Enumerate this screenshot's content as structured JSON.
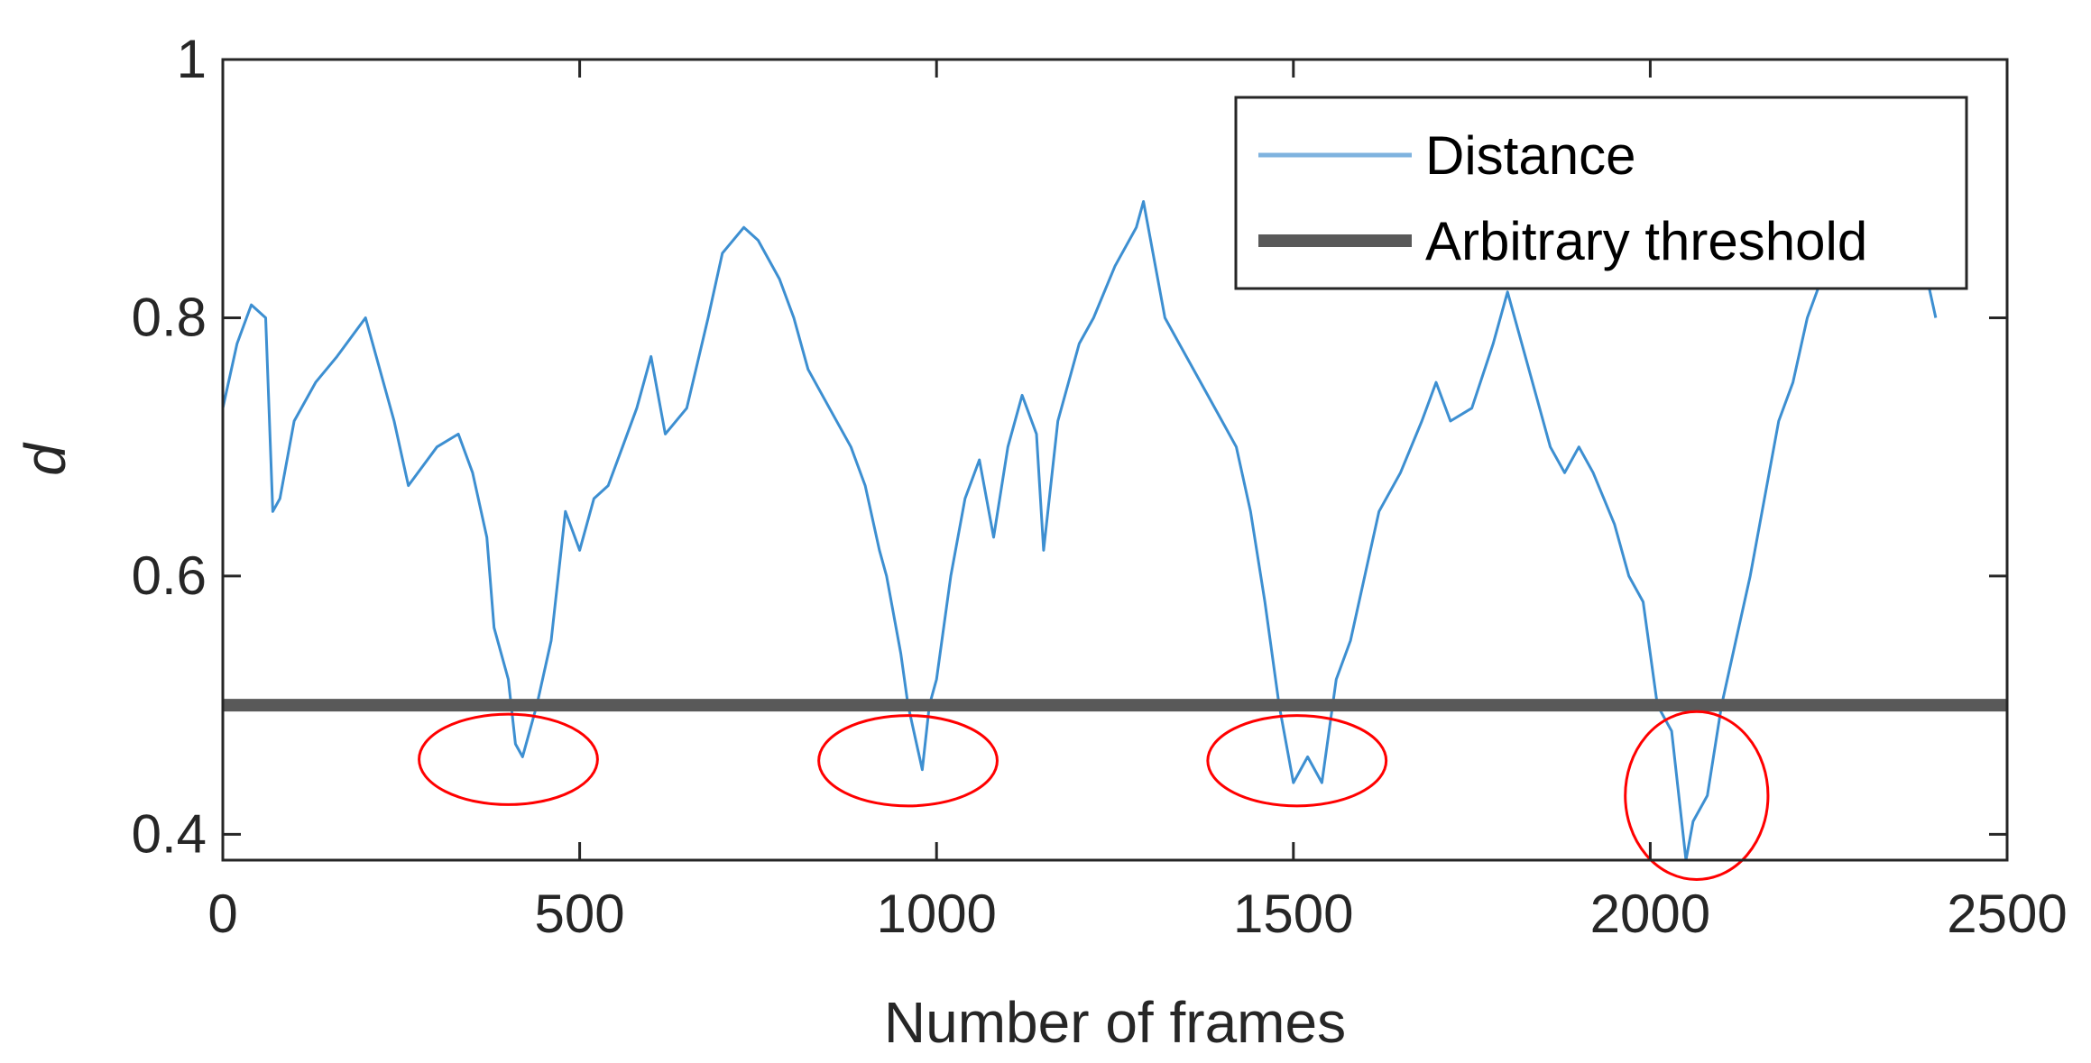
{
  "chart_data": {
    "type": "line",
    "xlabel": "Number of frames",
    "ylabel": "d",
    "xlim": [
      0,
      2500
    ],
    "ylim": [
      0.38,
      1.0
    ],
    "xticks": [
      0,
      500,
      1000,
      1500,
      2000,
      2500
    ],
    "xtick_labels": [
      "0",
      "500",
      "1000",
      "1500",
      "2000",
      "2500"
    ],
    "yticks": [
      0.4,
      0.6,
      0.8,
      1.0
    ],
    "ytick_labels": [
      "0.4",
      "0.6",
      "0.8",
      "1"
    ],
    "grid": false,
    "legend_position": "top-right",
    "series": [
      {
        "name": "Distance",
        "color": "#0072BD",
        "x": [
          0,
          20,
          40,
          60,
          70,
          80,
          100,
          130,
          160,
          200,
          240,
          260,
          300,
          330,
          350,
          370,
          380,
          400,
          410,
          420,
          440,
          460,
          480,
          500,
          520,
          540,
          560,
          580,
          600,
          620,
          650,
          680,
          700,
          730,
          750,
          780,
          800,
          820,
          850,
          880,
          900,
          920,
          930,
          950,
          960,
          980,
          990,
          1000,
          1020,
          1040,
          1060,
          1080,
          1100,
          1120,
          1140,
          1150,
          1170,
          1200,
          1220,
          1250,
          1280,
          1290,
          1320,
          1350,
          1380,
          1400,
          1420,
          1440,
          1460,
          1480,
          1500,
          1520,
          1540,
          1560,
          1580,
          1600,
          1620,
          1650,
          1680,
          1700,
          1720,
          1750,
          1780,
          1800,
          1820,
          1840,
          1860,
          1880,
          1900,
          1920,
          1950,
          1970,
          1990,
          2010,
          2030,
          2050,
          2060,
          2080,
          2100,
          2120,
          2140,
          2160,
          2180,
          2200,
          2220,
          2240,
          2260,
          2280,
          2300,
          2320,
          2350,
          2380,
          2400
        ],
        "y": [
          0.73,
          0.78,
          0.81,
          0.8,
          0.65,
          0.66,
          0.72,
          0.75,
          0.77,
          0.8,
          0.72,
          0.67,
          0.7,
          0.71,
          0.68,
          0.63,
          0.56,
          0.52,
          0.47,
          0.46,
          0.5,
          0.55,
          0.65,
          0.62,
          0.66,
          0.67,
          0.7,
          0.73,
          0.77,
          0.71,
          0.73,
          0.8,
          0.85,
          0.87,
          0.86,
          0.83,
          0.8,
          0.76,
          0.73,
          0.7,
          0.67,
          0.62,
          0.6,
          0.54,
          0.5,
          0.45,
          0.5,
          0.52,
          0.6,
          0.66,
          0.69,
          0.63,
          0.7,
          0.74,
          0.71,
          0.62,
          0.72,
          0.78,
          0.8,
          0.84,
          0.87,
          0.89,
          0.8,
          0.77,
          0.74,
          0.72,
          0.7,
          0.65,
          0.58,
          0.5,
          0.44,
          0.46,
          0.44,
          0.52,
          0.55,
          0.6,
          0.65,
          0.68,
          0.72,
          0.75,
          0.72,
          0.73,
          0.78,
          0.82,
          0.78,
          0.74,
          0.7,
          0.68,
          0.7,
          0.68,
          0.64,
          0.6,
          0.58,
          0.5,
          0.48,
          0.38,
          0.41,
          0.43,
          0.5,
          0.55,
          0.6,
          0.66,
          0.72,
          0.75,
          0.8,
          0.83,
          0.84,
          0.86,
          0.85,
          0.87,
          0.86,
          0.85,
          0.8
        ]
      },
      {
        "name": "Arbitrary threshold",
        "color": "#595959",
        "x": [
          0,
          2500
        ],
        "y": [
          0.5,
          0.5
        ]
      }
    ],
    "annotations": [
      {
        "shape": "ellipse",
        "color": "#FF0000",
        "cx": 400,
        "cy": 0.458,
        "rx": 125,
        "ry": 0.035
      },
      {
        "shape": "ellipse",
        "color": "#FF0000",
        "cx": 960,
        "cy": 0.457,
        "rx": 125,
        "ry": 0.035
      },
      {
        "shape": "ellipse",
        "color": "#FF0000",
        "cx": 1505,
        "cy": 0.457,
        "rx": 125,
        "ry": 0.035
      },
      {
        "shape": "ellipse",
        "color": "#FF0000",
        "cx": 2065,
        "cy": 0.43,
        "rx": 100,
        "ry": 0.065
      }
    ]
  }
}
